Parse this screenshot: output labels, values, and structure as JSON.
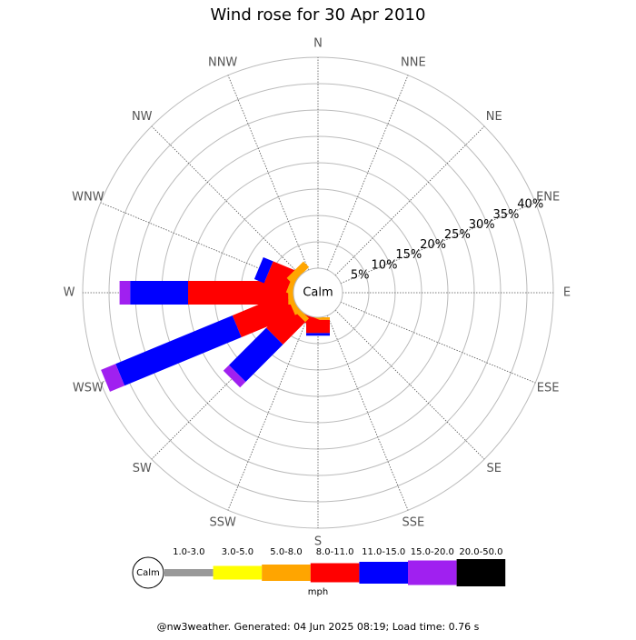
{
  "chart_data": {
    "type": "wind_rose",
    "title": "Wind rose for 30 Apr 2010",
    "categories": [
      "N",
      "NNE",
      "NE",
      "ENE",
      "E",
      "ESE",
      "SE",
      "SSE",
      "S",
      "SSW",
      "SW",
      "WSW",
      "W",
      "WNW",
      "NW",
      "NNW"
    ],
    "calm_label": "Calm",
    "series": [
      {
        "name": "1.0-3.0",
        "color": "#999999",
        "values": [
          0,
          0,
          0,
          0,
          0,
          0,
          0,
          0,
          0,
          0,
          0,
          0,
          0,
          0,
          0,
          0
        ]
      },
      {
        "name": "3.0-5.0",
        "color": "#ffff00",
        "values": [
          0,
          0,
          0,
          0,
          0,
          0,
          0,
          0,
          0,
          0,
          0,
          0,
          0,
          0,
          0,
          0
        ]
      },
      {
        "name": "5.0-8.0",
        "color": "#ffa500",
        "values": [
          0,
          0,
          0,
          0,
          0,
          0,
          0,
          0,
          0.5,
          0,
          1,
          1,
          1,
          1,
          1.5,
          0
        ]
      },
      {
        "name": "8.0-11.0",
        "color": "#ff0000",
        "values": [
          0,
          0,
          0,
          0,
          0,
          0,
          0,
          0,
          2.5,
          1.5,
          6,
          11,
          19,
          4.5,
          0,
          0
        ]
      },
      {
        "name": "11.0-15.0",
        "color": "#0000ff",
        "values": [
          0,
          0,
          0,
          0,
          0,
          0,
          0,
          0,
          0.5,
          0,
          10,
          24,
          11,
          2,
          0,
          0
        ]
      },
      {
        "name": "15.0-20.0",
        "color": "#a020f0",
        "values": [
          0,
          0,
          0,
          0,
          0,
          0,
          0,
          0,
          0,
          0,
          1.5,
          3,
          2,
          0,
          0,
          0
        ]
      },
      {
        "name": "20.0-50.0",
        "color": "#000000",
        "values": [
          0,
          0,
          0,
          0,
          0,
          0,
          0,
          0,
          0,
          0,
          0,
          0,
          0,
          0,
          0,
          0
        ]
      }
    ],
    "rlim": [
      0,
      40
    ],
    "rticks": [
      {
        "value": 5,
        "label": "5%"
      },
      {
        "value": 10,
        "label": "10%"
      },
      {
        "value": 15,
        "label": "15%"
      },
      {
        "value": 20,
        "label": "20%"
      },
      {
        "value": 25,
        "label": "25%"
      },
      {
        "value": 30,
        "label": "30%"
      },
      {
        "value": 35,
        "label": "35%"
      },
      {
        "value": 40,
        "label": "40%"
      }
    ],
    "legend_unit": "mph",
    "footer": "@nw3weather. Generated: 04 Jun 2025 08:19; Load time: 0.76 s"
  }
}
